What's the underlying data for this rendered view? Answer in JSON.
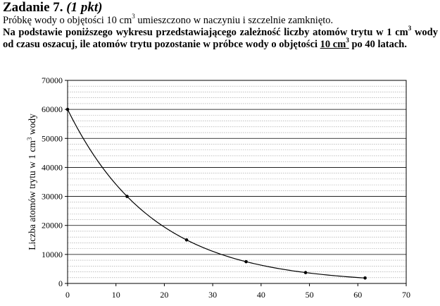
{
  "task": {
    "number": "Zadanie 7.",
    "points": "(1 pkt)",
    "intro_before": "Próbkę wody o objętości 10 cm",
    "intro_sup": "3",
    "intro_after": " umieszczono w naczyniu i szczelnie zamknięto.",
    "question_part1": "Na podstawie poniższego wykresu przedstawiającego zależność liczby atomów trytu w 1 cm",
    "question_sup1": "3",
    "question_part2": " wody od czasu oszacuj, ile atomów trytu pozostanie w próbce wody o objętości ",
    "question_underlined": "10 cm",
    "question_sup2": "3",
    "question_part3": " po 40 latach."
  },
  "chart_data": {
    "type": "line",
    "title": "",
    "xlabel": "",
    "ylabel_main": "Liczba atomów trytu w 1 cm",
    "ylabel_sup": "3",
    "ylabel_end": "  wody",
    "xlim": [
      0,
      70
    ],
    "ylim": [
      0,
      70000
    ],
    "x_ticks": [
      "0",
      "10",
      "20",
      "30",
      "40",
      "50",
      "60",
      "70"
    ],
    "y_ticks": [
      "0",
      "10000",
      "20000",
      "30000",
      "40000",
      "50000",
      "60000",
      "70000"
    ],
    "grid": "horizontal",
    "series": [
      {
        "x": [
          0,
          12.3,
          24.6,
          36.9,
          49.2,
          61.5
        ],
        "values": [
          60000,
          30000,
          15000,
          7500,
          3750,
          1875
        ]
      }
    ]
  }
}
